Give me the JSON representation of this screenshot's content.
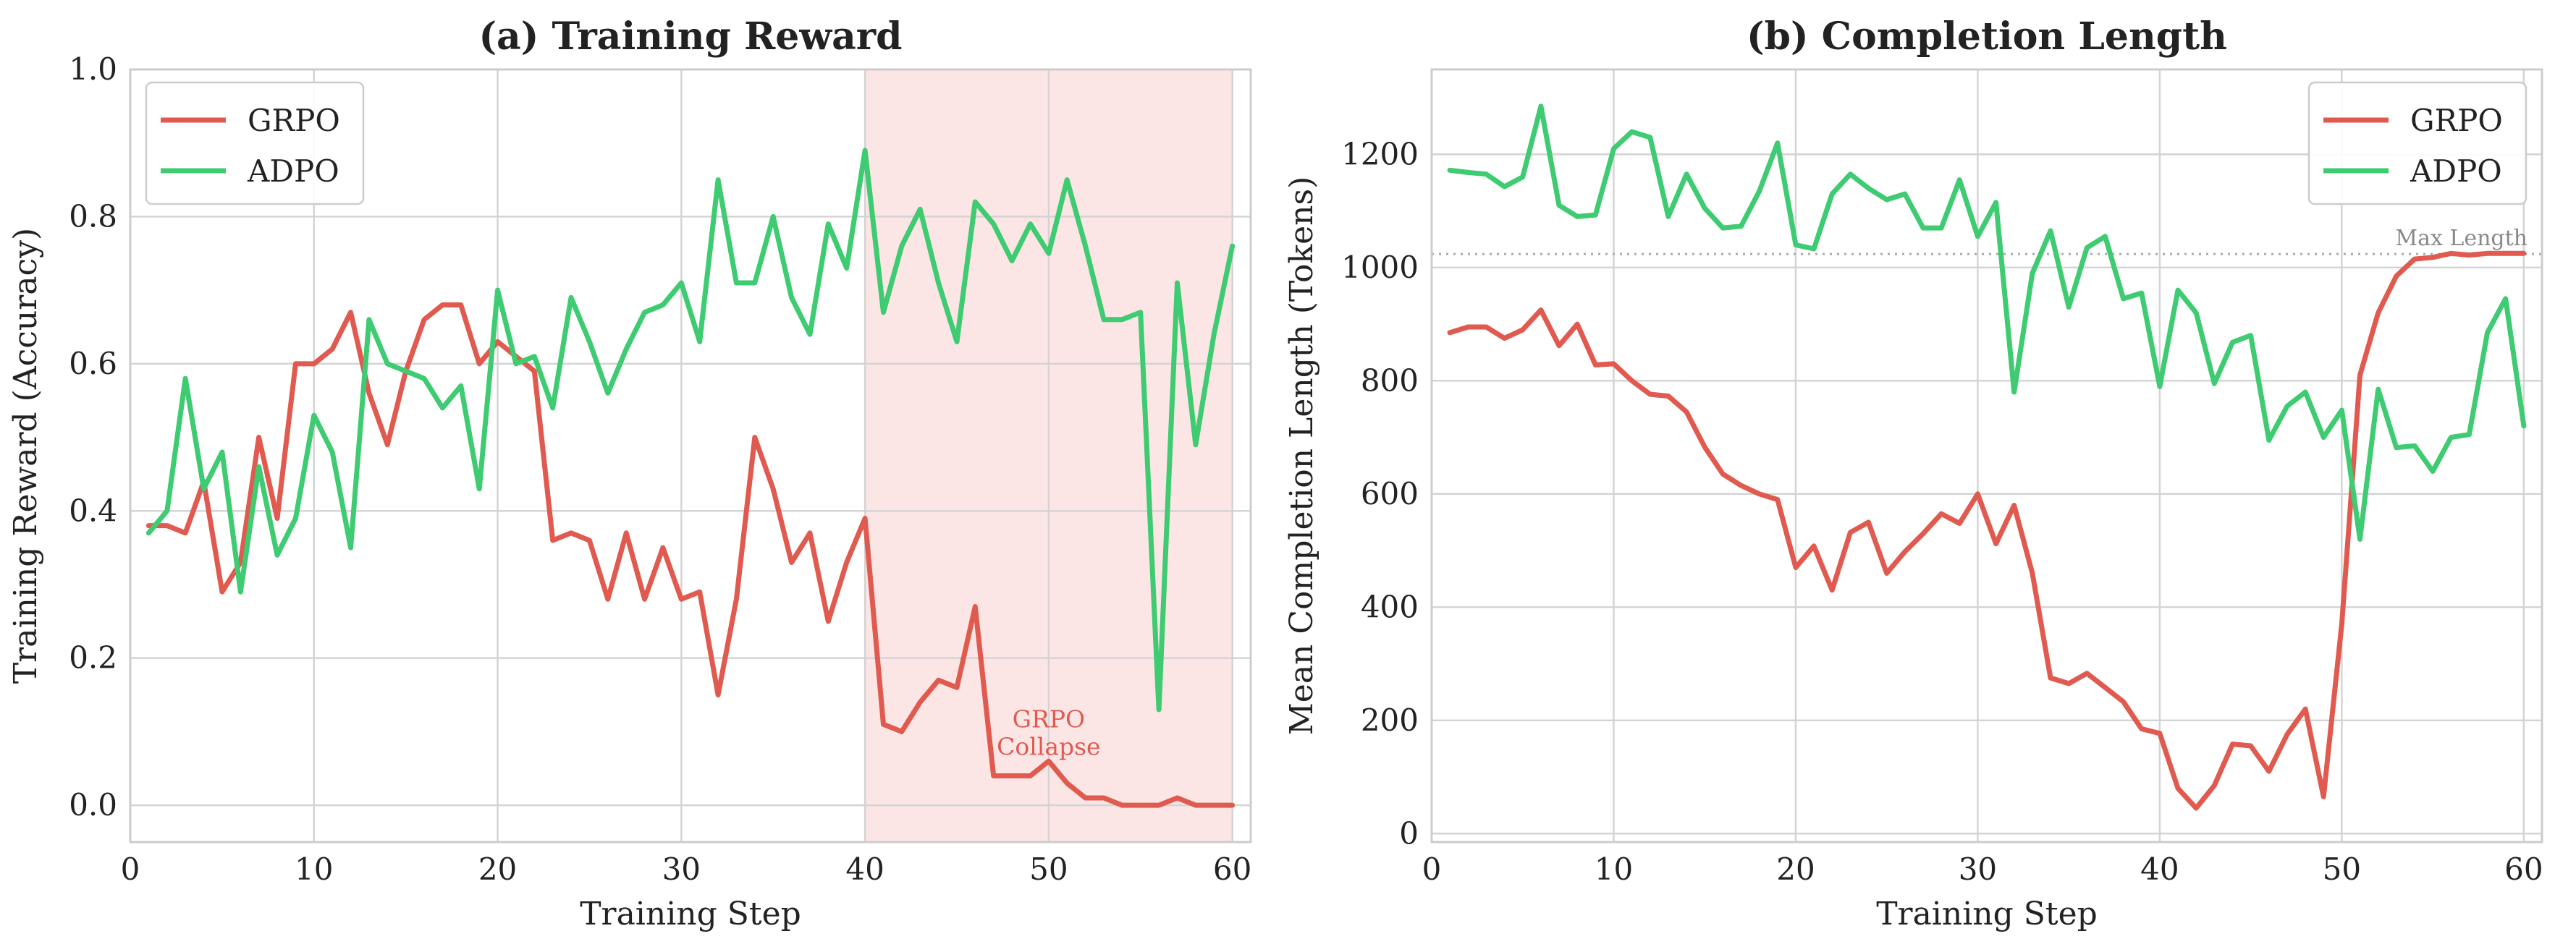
{
  "chart_data": [
    {
      "type": "line",
      "title": "(a) Training Reward",
      "xlabel": "Training Step",
      "ylabel": "Training Reward (Accuracy)",
      "xlim": [
        0,
        61
      ],
      "ylim": [
        -0.05,
        1.0
      ],
      "xticks": [
        0,
        10,
        20,
        30,
        40,
        50,
        60
      ],
      "yticks": [
        0.0,
        0.2,
        0.4,
        0.6,
        0.8,
        1.0
      ],
      "xtick_labels": [
        "0",
        "10",
        "20",
        "30",
        "40",
        "50",
        "60"
      ],
      "ytick_labels": [
        "0.0",
        "0.2",
        "0.4",
        "0.6",
        "0.8",
        "1.0"
      ],
      "grid": true,
      "legend": "top-left",
      "shaded_region": {
        "x0": 40,
        "x1": 60,
        "color": "#fbe6e5",
        "edge": "#e8a8a4"
      },
      "annotation": {
        "lines": [
          "GRPO",
          "Collapse"
        ],
        "x": 50,
        "y": 0.1,
        "color": "#e05a4f"
      },
      "x": [
        1,
        2,
        3,
        4,
        5,
        6,
        7,
        8,
        9,
        10,
        11,
        12,
        13,
        14,
        15,
        16,
        17,
        18,
        19,
        20,
        21,
        22,
        23,
        24,
        25,
        26,
        27,
        28,
        29,
        30,
        31,
        32,
        33,
        34,
        35,
        36,
        37,
        38,
        39,
        40,
        41,
        42,
        43,
        44,
        45,
        46,
        47,
        48,
        49,
        50,
        51,
        52,
        53,
        54,
        55,
        56,
        57,
        58,
        59,
        60
      ],
      "series": [
        {
          "name": "GRPO",
          "color": "#e05a4f",
          "values": [
            0.38,
            0.38,
            0.37,
            0.44,
            0.29,
            0.33,
            0.5,
            0.39,
            0.6,
            0.6,
            0.62,
            0.67,
            0.56,
            0.49,
            0.59,
            0.66,
            0.68,
            0.68,
            0.6,
            0.63,
            0.61,
            0.59,
            0.36,
            0.37,
            0.36,
            0.28,
            0.37,
            0.28,
            0.35,
            0.28,
            0.29,
            0.15,
            0.28,
            0.5,
            0.43,
            0.33,
            0.37,
            0.25,
            0.33,
            0.39,
            0.11,
            0.1,
            0.14,
            0.17,
            0.16,
            0.27,
            0.04,
            0.04,
            0.04,
            0.06,
            0.03,
            0.01,
            0.01,
            0.0,
            0.0,
            0.0,
            0.01,
            0.0,
            0.0,
            0.0
          ]
        },
        {
          "name": "ADPO",
          "color": "#3ecb72",
          "values": [
            0.37,
            0.4,
            0.58,
            0.43,
            0.48,
            0.29,
            0.46,
            0.34,
            0.39,
            0.53,
            0.48,
            0.35,
            0.66,
            0.6,
            0.59,
            0.58,
            0.54,
            0.57,
            0.43,
            0.7,
            0.6,
            0.61,
            0.54,
            0.69,
            0.63,
            0.56,
            0.62,
            0.67,
            0.68,
            0.71,
            0.63,
            0.85,
            0.71,
            0.71,
            0.8,
            0.69,
            0.64,
            0.79,
            0.73,
            0.89,
            0.67,
            0.76,
            0.81,
            0.71,
            0.63,
            0.82,
            0.79,
            0.74,
            0.79,
            0.75,
            0.85,
            0.76,
            0.66,
            0.66,
            0.67,
            0.13,
            0.71,
            0.49,
            0.64,
            0.76
          ]
        }
      ]
    },
    {
      "type": "line",
      "title": "(b) Completion Length",
      "xlabel": "Training Step",
      "ylabel": "Mean Completion Length (Tokens)",
      "xlim": [
        0,
        61
      ],
      "ylim": [
        -15,
        1350
      ],
      "xticks": [
        0,
        10,
        20,
        30,
        40,
        50,
        60
      ],
      "yticks": [
        0,
        200,
        400,
        600,
        800,
        1000,
        1200
      ],
      "xtick_labels": [
        "0",
        "10",
        "20",
        "30",
        "40",
        "50",
        "60"
      ],
      "ytick_labels": [
        "0",
        "200",
        "400",
        "600",
        "800",
        "1000",
        "1200"
      ],
      "grid": true,
      "legend": "top-right",
      "reference_line": {
        "y": 1024,
        "label": "Max Length",
        "color": "#aaaaaa"
      },
      "x": [
        1,
        2,
        3,
        4,
        5,
        6,
        7,
        8,
        9,
        10,
        11,
        12,
        13,
        14,
        15,
        16,
        17,
        18,
        19,
        20,
        21,
        22,
        23,
        24,
        25,
        26,
        27,
        28,
        29,
        30,
        31,
        32,
        33,
        34,
        35,
        36,
        37,
        38,
        39,
        40,
        41,
        42,
        43,
        44,
        45,
        46,
        47,
        48,
        49,
        50,
        51,
        52,
        53,
        54,
        55,
        56,
        57,
        58,
        59,
        60
      ],
      "series": [
        {
          "name": "GRPO",
          "color": "#e05a4f",
          "values": [
            885,
            895,
            895,
            875,
            890,
            925,
            862,
            900,
            828,
            830,
            800,
            776,
            773,
            745,
            683,
            635,
            615,
            600,
            590,
            470,
            508,
            430,
            532,
            550,
            460,
            498,
            530,
            565,
            548,
            600,
            512,
            580,
            460,
            275,
            265,
            283,
            258,
            233,
            185,
            177,
            80,
            45,
            85,
            158,
            155,
            110,
            175,
            220,
            65,
            370,
            810,
            920,
            985,
            1015,
            1018,
            1025,
            1022,
            1025,
            1025,
            1025
          ]
        },
        {
          "name": "ADPO",
          "color": "#3ecb72",
          "values": [
            1172,
            1168,
            1165,
            1143,
            1160,
            1285,
            1110,
            1090,
            1093,
            1210,
            1240,
            1230,
            1090,
            1165,
            1105,
            1070,
            1073,
            1135,
            1220,
            1040,
            1033,
            1130,
            1165,
            1140,
            1120,
            1130,
            1070,
            1070,
            1155,
            1055,
            1115,
            780,
            990,
            1065,
            930,
            1035,
            1055,
            945,
            955,
            790,
            960,
            920,
            795,
            868,
            880,
            695,
            755,
            780,
            700,
            748,
            520,
            785,
            682,
            685,
            640,
            700,
            705,
            885,
            945,
            720
          ]
        }
      ]
    }
  ]
}
